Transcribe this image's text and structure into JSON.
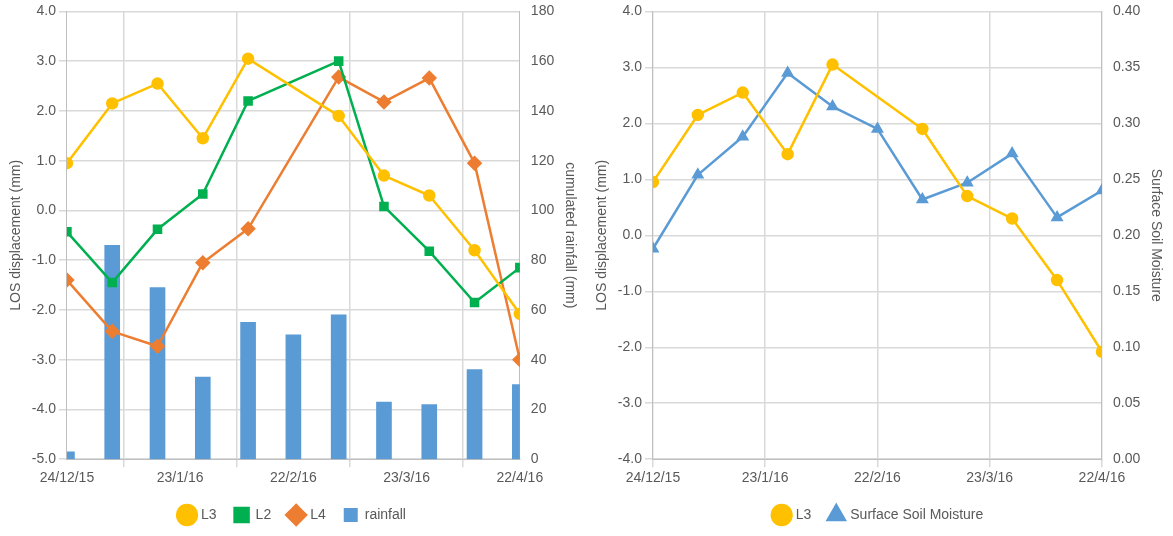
{
  "chart_data": [
    {
      "type": "line",
      "ylabel": "LOS displacement (mm)",
      "y2label": "cumulated rainfall (mm)",
      "x": [
        "2015-12-24",
        "2016-01-05",
        "2016-01-17",
        "2016-01-29",
        "2016-02-10",
        "2016-02-22",
        "2016-03-05",
        "2016-03-17",
        "2016-03-29",
        "2016-04-10",
        "2016-04-22"
      ],
      "series": [
        {
          "name": "rainfall",
          "type": "bar",
          "axis": "y2",
          "color": "#5b9bd5",
          "values": [
            3,
            86,
            69,
            33,
            55,
            50,
            58,
            23,
            22,
            36,
            30
          ]
        },
        {
          "name": "L3",
          "color": "#ffc000",
          "marker": "circle",
          "x": [
            "2015-12-24",
            "2016-01-05",
            "2016-01-17",
            "2016-01-29",
            "2016-02-10",
            "2016-03-05",
            "2016-03-17",
            "2016-03-29",
            "2016-04-10",
            "2016-04-22"
          ],
          "values": [
            0.95,
            2.15,
            2.55,
            1.45,
            3.05,
            1.9,
            0.7,
            0.3,
            -0.8,
            -2.08
          ]
        },
        {
          "name": "L2",
          "color": "#00b050",
          "marker": "square",
          "x": [
            "2015-12-24",
            "2016-01-05",
            "2016-01-17",
            "2016-01-29",
            "2016-02-10",
            "2016-03-05",
            "2016-03-17",
            "2016-03-29",
            "2016-04-10",
            "2016-04-22"
          ],
          "values": [
            -0.43,
            -1.45,
            -0.38,
            0.33,
            2.2,
            3.0,
            0.08,
            -0.82,
            -1.85,
            -1.15
          ]
        },
        {
          "name": "L4",
          "color": "#ed7d31",
          "marker": "diamond",
          "x": [
            "2015-12-24",
            "2016-01-05",
            "2016-01-17",
            "2016-01-29",
            "2016-02-10",
            "2016-03-05",
            "2016-03-17",
            "2016-03-29",
            "2016-04-10",
            "2016-04-22"
          ],
          "values": [
            -1.4,
            -2.43,
            -2.73,
            -1.05,
            -0.37,
            2.68,
            2.18,
            2.66,
            0.95,
            -3.0
          ]
        }
      ],
      "xlim": [
        "2015-12-24",
        "2016-04-22"
      ],
      "xticks": [
        {
          "value": "2015-12-24",
          "label": "24/12/15"
        },
        {
          "value": "2016-01-23",
          "label": "23/1/16"
        },
        {
          "value": "2016-02-22",
          "label": "22/2/16"
        },
        {
          "value": "2016-03-23",
          "label": "23/3/16"
        },
        {
          "value": "2016-04-22",
          "label": "22/4/16"
        }
      ],
      "ylim": [
        -5,
        4
      ],
      "yticks": [
        {
          "value": -5,
          "label": "-5.0"
        },
        {
          "value": -4,
          "label": "-4.0"
        },
        {
          "value": -3,
          "label": "-3.0"
        },
        {
          "value": -2,
          "label": "-2.0"
        },
        {
          "value": -1,
          "label": "-1.0"
        },
        {
          "value": 0,
          "label": "0.0"
        },
        {
          "value": 1,
          "label": "1.0"
        },
        {
          "value": 2,
          "label": "2.0"
        },
        {
          "value": 3,
          "label": "3.0"
        },
        {
          "value": 4,
          "label": "4.0"
        }
      ],
      "y2lim": [
        0,
        180
      ],
      "y2ticks": [
        0,
        20,
        40,
        60,
        80,
        100,
        120,
        140,
        160,
        180
      ],
      "grid": true,
      "legend": "bottom"
    },
    {
      "type": "line",
      "ylabel": "LOS displacement (mm)",
      "y2label": "Surface Soil Moisture",
      "x": [
        "2015-12-24",
        "2016-01-05",
        "2016-01-17",
        "2016-01-29",
        "2016-02-10",
        "2016-02-22",
        "2016-03-05",
        "2016-03-17",
        "2016-03-29",
        "2016-04-10",
        "2016-04-22"
      ],
      "series": [
        {
          "name": "L3",
          "color": "#ffc000",
          "marker": "circle",
          "x": [
            "2015-12-24",
            "2016-01-05",
            "2016-01-17",
            "2016-01-29",
            "2016-02-10",
            "2016-03-05",
            "2016-03-17",
            "2016-03-29",
            "2016-04-10",
            "2016-04-22"
          ],
          "values": [
            0.95,
            2.15,
            2.55,
            1.45,
            3.05,
            1.9,
            0.7,
            0.3,
            -0.8,
            -2.08
          ]
        },
        {
          "name": "Surface Soil Moisture",
          "color": "#5b9bd5",
          "marker": "triangle",
          "axis": "y2",
          "values": [
            0.188,
            0.254,
            0.288,
            0.345,
            0.315,
            0.295,
            0.232,
            0.247,
            0.273,
            0.216,
            0.24
          ]
        }
      ],
      "xlim": [
        "2015-12-24",
        "2016-04-22"
      ],
      "xticks": [
        {
          "value": "2015-12-24",
          "label": "24/12/15"
        },
        {
          "value": "2016-01-23",
          "label": "23/1/16"
        },
        {
          "value": "2016-02-22",
          "label": "22/2/16"
        },
        {
          "value": "2016-03-23",
          "label": "23/3/16"
        },
        {
          "value": "2016-04-22",
          "label": "22/4/16"
        }
      ],
      "ylim": [
        -4,
        4
      ],
      "yticks": [
        {
          "value": -4,
          "label": "-4.0"
        },
        {
          "value": -3,
          "label": "-3.0"
        },
        {
          "value": -2,
          "label": "-2.0"
        },
        {
          "value": -1,
          "label": "-1.0"
        },
        {
          "value": 0,
          "label": "0.0"
        },
        {
          "value": 1,
          "label": "1.0"
        },
        {
          "value": 2,
          "label": "2.0"
        },
        {
          "value": 3,
          "label": "3.0"
        },
        {
          "value": 4,
          "label": "4.0"
        }
      ],
      "y2lim": [
        0,
        0.4
      ],
      "y2ticks": [
        {
          "value": 0,
          "label": "0.00"
        },
        {
          "value": 0.05,
          "label": "0.05"
        },
        {
          "value": 0.1,
          "label": "0.10"
        },
        {
          "value": 0.15,
          "label": "0.15"
        },
        {
          "value": 0.2,
          "label": "0.20"
        },
        {
          "value": 0.25,
          "label": "0.25"
        },
        {
          "value": 0.3,
          "label": "0.30"
        },
        {
          "value": 0.35,
          "label": "0.35"
        },
        {
          "value": 0.4,
          "label": "0.40"
        }
      ],
      "grid": true,
      "legend": "bottom"
    }
  ]
}
